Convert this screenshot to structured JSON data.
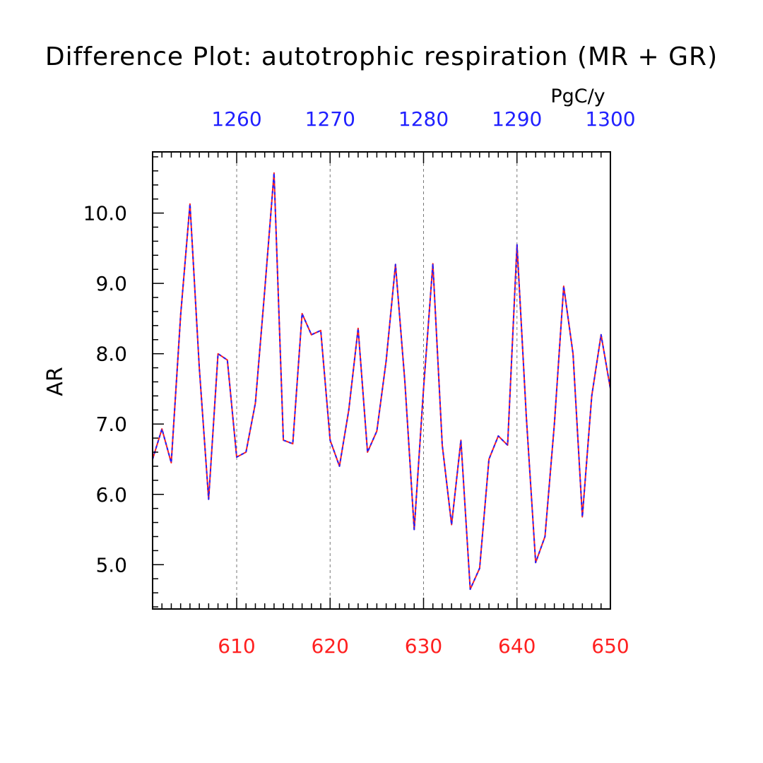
{
  "chart_data": {
    "type": "line",
    "title": "Difference Plot: autotrophic respiration (MR + GR)",
    "units": "PgC/y",
    "ylabel": "AR",
    "xlabel": "",
    "x_bottom": {
      "range": [
        601,
        650
      ],
      "ticks": [
        610,
        620,
        630,
        640,
        650
      ],
      "tick_labels": [
        "610",
        "620",
        "630",
        "640",
        "650"
      ],
      "color": "#ff2020"
    },
    "x_top": {
      "range": [
        1251,
        1300
      ],
      "ticks": [
        1260,
        1270,
        1280,
        1290,
        1300
      ],
      "tick_labels": [
        "1260",
        "1270",
        "1280",
        "1290",
        "1300"
      ],
      "color": "#2020ff"
    },
    "ylim": [
      4.37,
      10.87
    ],
    "y_ticks": [
      5.0,
      6.0,
      7.0,
      8.0,
      9.0,
      10.0
    ],
    "y_tick_labels": [
      "5.0",
      "6.0",
      "7.0",
      "8.0",
      "9.0",
      "10.0"
    ],
    "grid": "vertical dashed at major x ticks",
    "x": [
      601,
      602,
      603,
      604,
      605,
      606,
      607,
      608,
      609,
      610,
      611,
      612,
      613,
      614,
      615,
      616,
      617,
      618,
      619,
      620,
      621,
      622,
      623,
      624,
      625,
      626,
      627,
      628,
      629,
      630,
      631,
      632,
      633,
      634,
      635,
      636,
      637,
      638,
      639,
      640,
      641,
      642,
      643,
      644,
      645,
      646,
      647,
      648,
      649,
      650
    ],
    "series": [
      {
        "color": "#ff2020",
        "values": [
          6.5,
          6.93,
          6.45,
          8.55,
          10.13,
          7.8,
          5.93,
          8.0,
          7.91,
          6.53,
          6.6,
          7.3,
          8.9,
          10.57,
          6.77,
          6.72,
          8.57,
          8.27,
          8.33,
          6.77,
          6.4,
          7.2,
          8.36,
          6.6,
          6.9,
          7.9,
          9.27,
          7.6,
          5.5,
          7.5,
          9.28,
          6.7,
          5.57,
          6.77,
          4.65,
          4.95,
          6.5,
          6.83,
          6.7,
          9.55,
          7.1,
          5.03,
          5.4,
          7.0,
          8.96,
          8.0,
          5.68,
          7.4,
          8.27,
          7.5
        ]
      },
      {
        "color": "#2020ff",
        "values": [
          6.5,
          6.93,
          6.45,
          8.55,
          10.13,
          7.8,
          5.93,
          8.0,
          7.91,
          6.53,
          6.6,
          7.3,
          8.9,
          10.57,
          6.77,
          6.72,
          8.57,
          8.27,
          8.33,
          6.77,
          6.4,
          7.2,
          8.36,
          6.6,
          6.9,
          7.9,
          9.27,
          7.6,
          5.5,
          7.5,
          9.28,
          6.7,
          5.57,
          6.77,
          4.65,
          4.95,
          6.5,
          6.83,
          6.7,
          9.55,
          7.1,
          5.03,
          5.4,
          7.0,
          8.96,
          8.0,
          5.68,
          7.4,
          8.27,
          7.5
        ]
      }
    ]
  }
}
